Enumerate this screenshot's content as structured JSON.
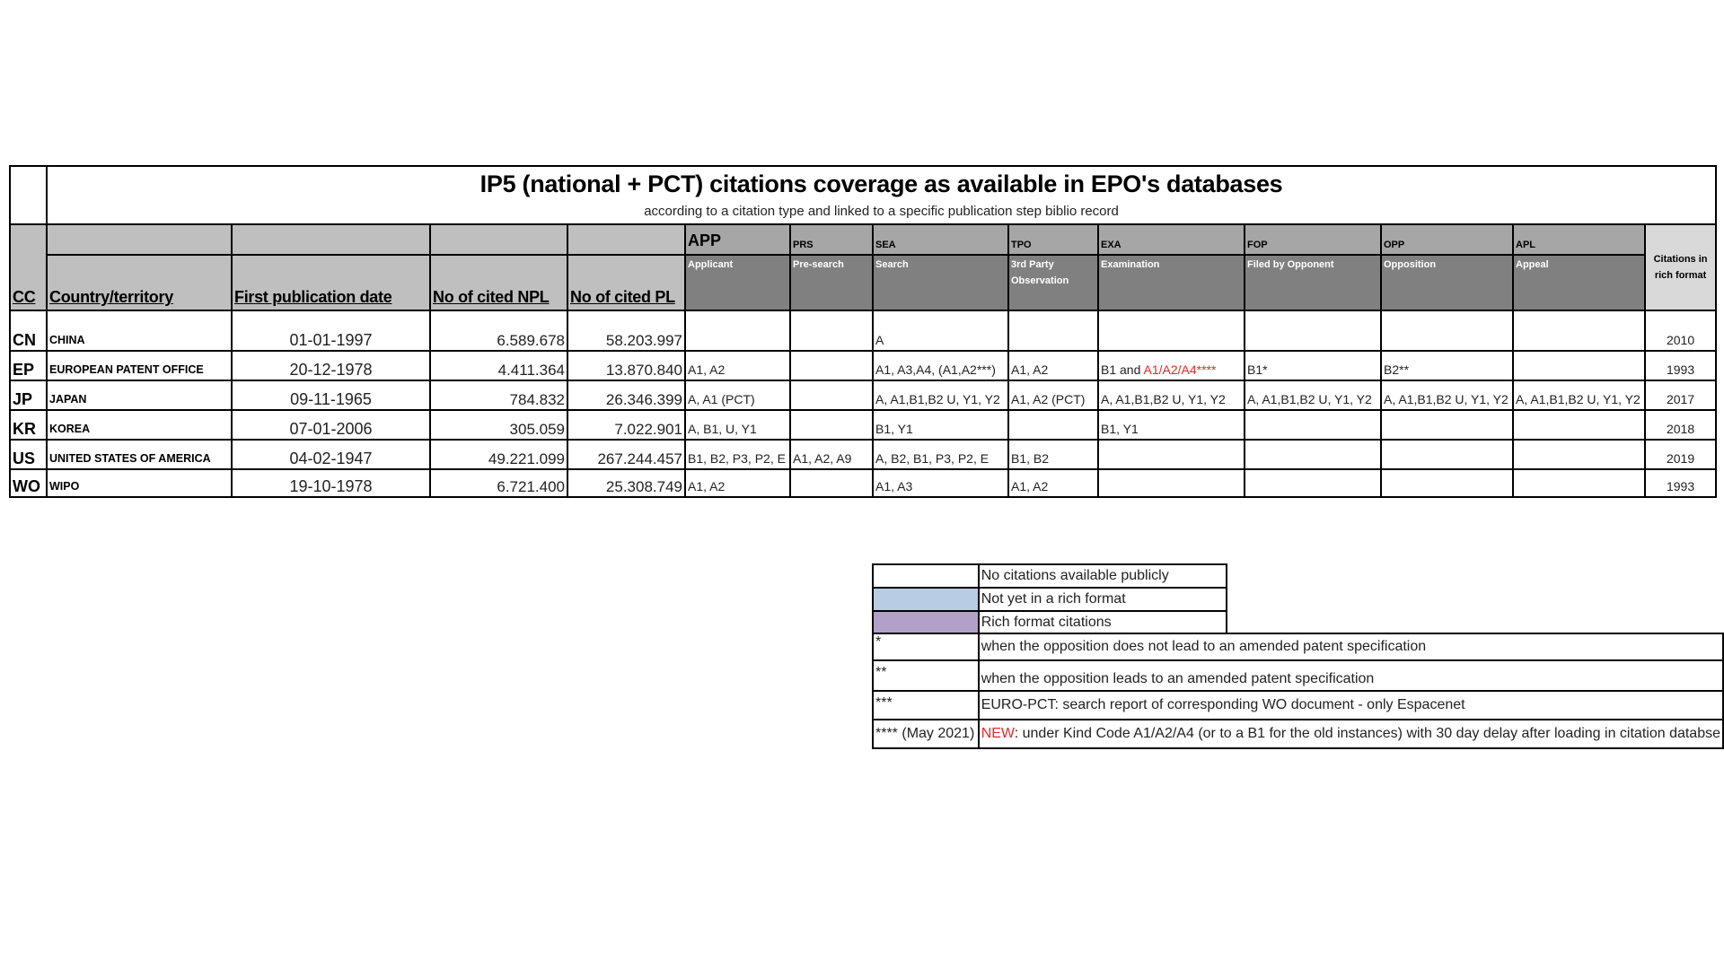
{
  "title": "IP5 (national + PCT) citations coverage as available in EPO's databases",
  "subtitle": "according to a citation type and linked to a specific publication step biblio record",
  "headers": {
    "cc": "CC",
    "country": "Country/territory",
    "first_pub": "First publication date",
    "npl": "No of cited NPL",
    "pl": "No of cited PL",
    "rich": "Citations in rich format"
  },
  "steps": [
    {
      "code": "APP",
      "label": "Applicant"
    },
    {
      "code": "PRS",
      "label": "Pre-search"
    },
    {
      "code": "SEA",
      "label": "Search"
    },
    {
      "code": "TPO",
      "label": "3rd Party Observation"
    },
    {
      "code": "EXA",
      "label": "Examination"
    },
    {
      "code": "FOP",
      "label": "Filed by Opponent"
    },
    {
      "code": "OPP",
      "label": "Opposition"
    },
    {
      "code": "APL",
      "label": "Appeal"
    }
  ],
  "rows": [
    {
      "cc": "CN",
      "country": "CHINA",
      "date": "01-01-1997",
      "npl": "6.589.678",
      "pl": "58.203.997",
      "steps": [
        "",
        "",
        "A",
        "",
        "",
        "",
        "",
        ""
      ],
      "rich": "2010"
    },
    {
      "cc": "EP",
      "country": "EUROPEAN PATENT OFFICE",
      "date": "20-12-1978",
      "npl": "4.411.364",
      "pl": "13.870.840",
      "steps": [
        "A1, A2",
        "",
        "A1, A3,A4, (A1,A2***)",
        "A1, A2",
        "B1 and ",
        "B1*",
        "B2**",
        ""
      ],
      "exa_red": "A1/A2/A4****",
      "rich": "1993"
    },
    {
      "cc": "JP",
      "country": "JAPAN",
      "date": "09-11-1965",
      "npl": "784.832",
      "pl": "26.346.399",
      "steps": [
        "A, A1 (PCT)",
        "",
        "A, A1,B1,B2 U, Y1, Y2",
        "A1, A2 (PCT)",
        "A, A1,B1,B2 U, Y1, Y2",
        "A, A1,B1,B2 U, Y1, Y2",
        "A, A1,B1,B2 U, Y1, Y2",
        "A, A1,B1,B2 U, Y1, Y2"
      ],
      "rich": "2017"
    },
    {
      "cc": "KR",
      "country": "KOREA",
      "date": "07-01-2006",
      "npl": "305.059",
      "pl": "7.022.901",
      "steps": [
        "A, B1, U, Y1",
        "",
        "B1, Y1",
        "",
        "B1, Y1",
        "",
        "",
        ""
      ],
      "rich": "2018"
    },
    {
      "cc": "US",
      "country": "UNITED STATES OF AMERICA",
      "date": "04-02-1947",
      "npl": "49.221.099",
      "pl": "267.244.457",
      "steps": [
        "B1, B2, P3, P2, E",
        "A1, A2, A9",
        "A, B2, B1, P3, P2, E",
        "B1, B2",
        "",
        "",
        "",
        ""
      ],
      "rich": "2019"
    },
    {
      "cc": "WO",
      "country": "WIPO",
      "date": "19-10-1978",
      "npl": "6.721.400",
      "pl": "25.308.749",
      "steps": [
        "A1, A2",
        "",
        "A1, A3",
        "A1, A2",
        "",
        "",
        "",
        ""
      ],
      "rich": "1993"
    }
  ],
  "legend": {
    "swatches": [
      {
        "label": "No citations available publicly",
        "color": "#ffffff"
      },
      {
        "label": "Not yet in a rich format",
        "color": "#b8cce4"
      },
      {
        "label": "Rich format citations",
        "color": "#b1a0c7"
      }
    ],
    "notes": [
      {
        "mark": "*",
        "text": "when the opposition does not lead to an amended patent specification"
      },
      {
        "mark": "**",
        "text": "when the opposition leads to an amended patent specification"
      },
      {
        "mark": "***",
        "text": "EURO-PCT: search report of corresponding WO document - only Espacenet"
      }
    ],
    "new_note": {
      "mark": "****",
      "date": "(May 2021)",
      "prefix": "NEW",
      "text": ": under Kind Code A1/A2/A4 (or to a B1 for the old instances) with 30 day delay after loading in citation databse"
    }
  },
  "colors": {
    "red": "#e8262a",
    "header_dark": "#808080",
    "header_mid": "#a6a6a6",
    "header_light": "#bfbfbf"
  }
}
